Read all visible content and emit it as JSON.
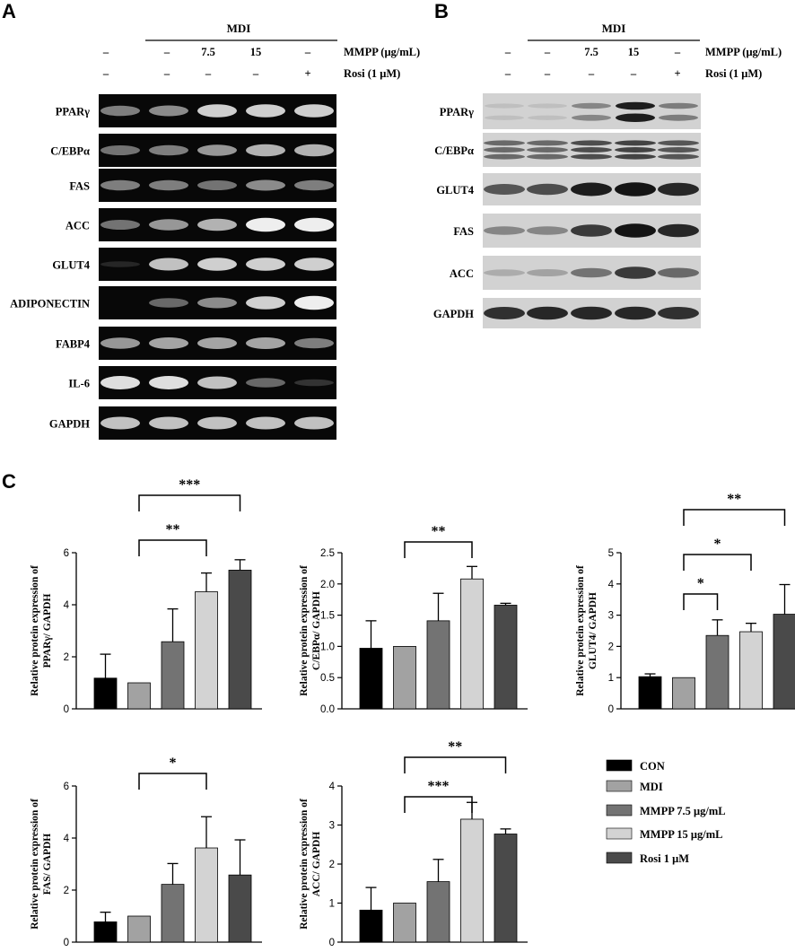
{
  "panels": {
    "a": "A",
    "b": "B",
    "c": "C"
  },
  "treatment_header": {
    "mdi": "MDI",
    "mmpp_label": "MMPP (μg/mL)",
    "rosi_label": "Rosi (1 μM)",
    "mmpp_values": [
      "–",
      "–",
      "7.5",
      "15",
      "–"
    ],
    "rosi_values": [
      "–",
      "–",
      "–",
      "–",
      "+"
    ]
  },
  "panel_a": {
    "genes": [
      "PPARγ",
      "C/EBPα",
      "FAS",
      "ACC",
      "GLUT4",
      "ADIPONECTIN",
      "FABP4",
      "IL-6",
      "GAPDH"
    ],
    "intensity": [
      [
        0.55,
        0.6,
        0.85,
        0.85,
        0.85
      ],
      [
        0.5,
        0.55,
        0.65,
        0.75,
        0.75
      ],
      [
        0.55,
        0.55,
        0.5,
        0.6,
        0.55
      ],
      [
        0.5,
        0.65,
        0.75,
        0.95,
        0.95
      ],
      [
        0.05,
        0.8,
        0.85,
        0.85,
        0.85
      ],
      [
        0.0,
        0.45,
        0.6,
        0.85,
        0.95
      ],
      [
        0.65,
        0.7,
        0.7,
        0.7,
        0.55
      ],
      [
        0.9,
        0.9,
        0.8,
        0.45,
        0.15
      ],
      [
        0.8,
        0.8,
        0.8,
        0.8,
        0.8
      ]
    ]
  },
  "panel_b": {
    "proteins": [
      "PPARγ",
      "C/EBPα",
      "GLUT4",
      "FAS",
      "ACC",
      "GAPDH"
    ],
    "intensity": [
      [
        0.05,
        0.05,
        0.35,
        0.9,
        0.4
      ],
      [
        0.5,
        0.5,
        0.65,
        0.7,
        0.6
      ],
      [
        0.6,
        0.65,
        0.9,
        0.95,
        0.85
      ],
      [
        0.35,
        0.35,
        0.75,
        0.95,
        0.85
      ],
      [
        0.15,
        0.2,
        0.45,
        0.75,
        0.5
      ],
      [
        0.8,
        0.85,
        0.85,
        0.85,
        0.8
      ]
    ]
  },
  "legend": {
    "items": [
      "CON",
      "MDI",
      "MMPP 7.5 μg/mL",
      "MMPP 15 μg/mL",
      "Rosi 1 μM"
    ],
    "colors": [
      "#000000",
      "#a2a2a2",
      "#737373",
      "#d3d3d3",
      "#4a4a4a"
    ]
  },
  "chart_data": [
    {
      "type": "bar",
      "ylabel": [
        "Relative protein expression of",
        "PPARγ/ GAPDH"
      ],
      "categories": [
        "CON",
        "MDI",
        "MMPP 7.5 μg/mL",
        "MMPP 15 μg/mL",
        "Rosi 1 μM"
      ],
      "values": [
        1.18,
        1.0,
        2.58,
        4.5,
        5.33
      ],
      "errors": [
        0.92,
        0.0,
        1.26,
        0.72,
        0.4
      ],
      "ylim": [
        0,
        6
      ],
      "yticks": [
        "0",
        "2",
        "4",
        "6"
      ],
      "significance": [
        {
          "from": 1,
          "to": 3,
          "label": "**"
        },
        {
          "from": 1,
          "to": 4,
          "label": "***"
        }
      ]
    },
    {
      "type": "bar",
      "ylabel": [
        "Relative protein expression of",
        "C/EBPα/ GAPDH"
      ],
      "categories": [
        "CON",
        "MDI",
        "MMPP 7.5 μg/mL",
        "MMPP 15 μg/mL",
        "Rosi 1 μM"
      ],
      "values": [
        0.97,
        1.0,
        1.41,
        2.08,
        1.66
      ],
      "errors": [
        0.44,
        0.0,
        0.44,
        0.2,
        0.03
      ],
      "ylim": [
        0,
        2.5
      ],
      "yticks": [
        "0.0",
        "0.5",
        "1.0",
        "1.5",
        "2.0",
        "2.5"
      ],
      "significance": [
        {
          "from": 1,
          "to": 3,
          "label": "**"
        }
      ]
    },
    {
      "type": "bar",
      "ylabel": [
        "Relative protein expression of",
        "GLUT4/ GAPDH"
      ],
      "categories": [
        "CON",
        "MDI",
        "MMPP 7.5 μg/mL",
        "MMPP 15 μg/mL",
        "Rosi 1 μM"
      ],
      "values": [
        1.03,
        1.0,
        2.35,
        2.47,
        3.03
      ],
      "errors": [
        0.09,
        0.0,
        0.5,
        0.27,
        0.95
      ],
      "ylim": [
        0,
        5
      ],
      "yticks": [
        "0",
        "1",
        "2",
        "3",
        "4",
        "5"
      ],
      "significance": [
        {
          "from": 1,
          "to": 2,
          "label": "*"
        },
        {
          "from": 1,
          "to": 3,
          "label": "*"
        },
        {
          "from": 1,
          "to": 4,
          "label": "**"
        }
      ]
    },
    {
      "type": "bar",
      "ylabel": [
        "Relative  protein expression of",
        "FAS/ GAPDH"
      ],
      "categories": [
        "CON",
        "MDI",
        "MMPP 7.5 μg/mL",
        "MMPP 15 μg/mL",
        "Rosi 1 μM"
      ],
      "values": [
        0.78,
        1.0,
        2.22,
        3.62,
        2.58
      ],
      "errors": [
        0.37,
        0.0,
        0.8,
        1.2,
        1.35
      ],
      "ylim": [
        0,
        6
      ],
      "yticks": [
        "0",
        "2",
        "4",
        "6"
      ],
      "significance": [
        {
          "from": 1,
          "to": 3,
          "label": "*"
        }
      ]
    },
    {
      "type": "bar",
      "ylabel": [
        "Relative protein expression of",
        "ACC/ GAPDH"
      ],
      "categories": [
        "CON",
        "MDI",
        "MMPP 7.5 μg/mL",
        "MMPP 15 μg/mL",
        "Rosi 1 μM"
      ],
      "values": [
        0.82,
        1.0,
        1.55,
        3.15,
        2.77
      ],
      "errors": [
        0.58,
        0.0,
        0.57,
        0.43,
        0.13
      ],
      "ylim": [
        0,
        4
      ],
      "yticks": [
        "0",
        "1",
        "2",
        "3",
        "4"
      ],
      "significance": [
        {
          "from": 1,
          "to": 3,
          "label": "***"
        },
        {
          "from": 1,
          "to": 4,
          "label": "**"
        }
      ]
    }
  ]
}
